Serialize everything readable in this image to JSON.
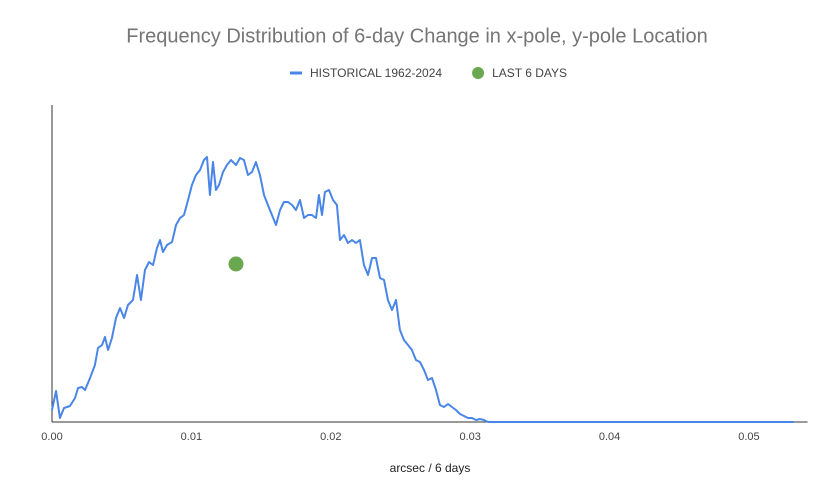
{
  "chart_data": {
    "type": "line",
    "title": "Frequency Distribution of 6-day Change in x-pole, y-pole Location",
    "x_label": "arcsec / 6 days",
    "xlim": [
      0,
      0.0542
    ],
    "ylim": [
      0,
      317
    ],
    "xticks": [
      {
        "value": 0,
        "label": "0.00"
      },
      {
        "value": 0.01,
        "label": "0.01"
      },
      {
        "value": 0.02,
        "label": "0.02"
      },
      {
        "value": 0.03,
        "label": "0.03"
      },
      {
        "value": 0.04,
        "label": "0.04"
      },
      {
        "value": 0.05,
        "label": "0.05"
      }
    ],
    "legend": "top",
    "series": [
      {
        "name": "HISTORICAL 1962-2024",
        "type": "line",
        "color": "#4a86e8",
        "x": [
          0,
          0.00029,
          0.00057,
          0.00086,
          0.00129,
          0.00165,
          0.00187,
          0.00215,
          0.00237,
          0.00273,
          0.00308,
          0.0033,
          0.00359,
          0.0038,
          0.00402,
          0.0043,
          0.00459,
          0.00488,
          0.00517,
          0.00545,
          0.00581,
          0.0061,
          0.00638,
          0.00667,
          0.00696,
          0.00725,
          0.00753,
          0.00775,
          0.00796,
          0.00825,
          0.00861,
          0.0089,
          0.00918,
          0.00947,
          0.00976,
          0.01004,
          0.01033,
          0.01062,
          0.0109,
          0.01112,
          0.01133,
          0.01155,
          0.01176,
          0.01198,
          0.01227,
          0.01255,
          0.01284,
          0.0132,
          0.01349,
          0.01377,
          0.01406,
          0.01435,
          0.01463,
          0.01492,
          0.01521,
          0.01549,
          0.01578,
          0.01607,
          0.01636,
          0.01664,
          0.01693,
          0.01722,
          0.0175,
          0.01779,
          0.01808,
          0.01836,
          0.01865,
          0.01894,
          0.01915,
          0.01937,
          0.01958,
          0.01987,
          0.02016,
          0.02044,
          0.02066,
          0.02095,
          0.02123,
          0.02152,
          0.02181,
          0.02209,
          0.02238,
          0.02267,
          0.02296,
          0.02324,
          0.02353,
          0.02382,
          0.0241,
          0.02439,
          0.02468,
          0.02496,
          0.02525,
          0.02554,
          0.02582,
          0.02611,
          0.0264,
          0.02669,
          0.02697,
          0.02726,
          0.02755,
          0.02783,
          0.02812,
          0.02841,
          0.02869,
          0.02898,
          0.02927,
          0.02956,
          0.02984,
          0.03013,
          0.03042,
          0.0307,
          0.03099,
          0.03128,
          0.035,
          0.04,
          0.05,
          0.0532
        ],
        "values": [
          12,
          31,
          4,
          14,
          16,
          24,
          34,
          35,
          32,
          44,
          57,
          74,
          77,
          85,
          72,
          84,
          104,
          114,
          104,
          117,
          122,
          147,
          122,
          152,
          160,
          157,
          174,
          182,
          170,
          177,
          180,
          197,
          204,
          207,
          222,
          237,
          247,
          252,
          262,
          265,
          227,
          260,
          232,
          237,
          250,
          257,
          262,
          257,
          264,
          262,
          247,
          250,
          260,
          247,
          227,
          217,
          207,
          197,
          212,
          220,
          220,
          217,
          212,
          222,
          204,
          207,
          207,
          204,
          227,
          207,
          230,
          232,
          222,
          217,
          182,
          187,
          179,
          182,
          179,
          182,
          157,
          147,
          164,
          164,
          144,
          142,
          122,
          112,
          122,
          92,
          82,
          77,
          72,
          62,
          60,
          52,
          42,
          44,
          32,
          17,
          15,
          18,
          15,
          12,
          8,
          6,
          4,
          4,
          2,
          3,
          2,
          0,
          0,
          0,
          0,
          0
        ]
      },
      {
        "name": "LAST 6 DAYS",
        "type": "scatter",
        "color": "#6aa84f",
        "x": [
          0.0132
        ],
        "values": [
          158
        ]
      }
    ]
  }
}
